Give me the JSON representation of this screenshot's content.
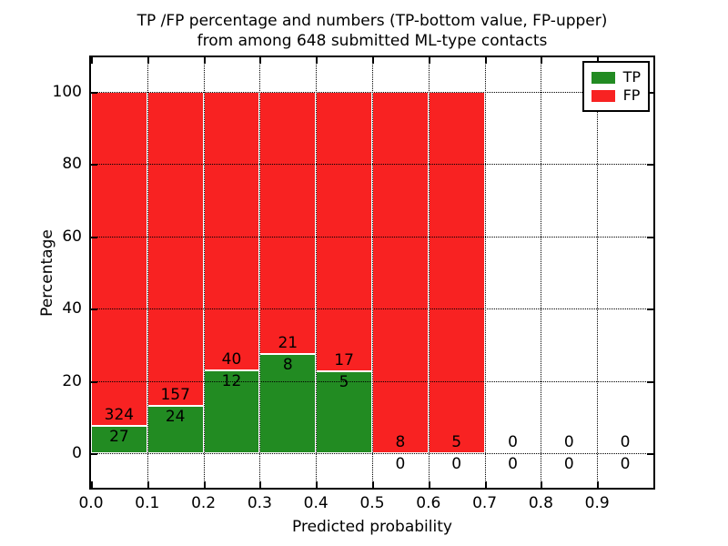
{
  "title": {
    "line1": "TP /FP percentage and numbers (TP-bottom value, FP-upper)",
    "line2": "from among 648 submitted ML-type contacts"
  },
  "axes": {
    "xlabel": "Predicted probability",
    "ylabel": "Percentage",
    "x_tick_labels": [
      "0.0",
      "0.1",
      "0.2",
      "0.3",
      "0.4",
      "0.5",
      "0.6",
      "0.7",
      "0.8",
      "0.9"
    ],
    "y_tick_labels": [
      "0",
      "20",
      "40",
      "60",
      "80",
      "100"
    ]
  },
  "legend": {
    "position": "upper right",
    "items": [
      {
        "label": "TP",
        "color": "#228b22"
      },
      {
        "label": "FP",
        "color": "#f82222"
      }
    ]
  },
  "chart_data": {
    "type": "bar",
    "stacked": true,
    "normalized": "each non-empty bin scaled to 100%",
    "title": "TP /FP percentage and numbers (TP-bottom value, FP-upper) from among 648 submitted ML-type contacts",
    "xlabel": "Predicted probability",
    "ylabel": "Percentage",
    "total_contacts": 648,
    "bin_width": 0.1,
    "bin_starts": [
      0.0,
      0.1,
      0.2,
      0.3,
      0.4,
      0.5,
      0.6,
      0.7,
      0.8,
      0.9
    ],
    "series": [
      {
        "name": "TP",
        "color": "#228b22",
        "counts": [
          27,
          24,
          12,
          8,
          5,
          0,
          0,
          0,
          0,
          0
        ]
      },
      {
        "name": "FP",
        "color": "#f82222",
        "counts": [
          324,
          157,
          40,
          21,
          17,
          8,
          5,
          0,
          0,
          0
        ]
      }
    ],
    "tp_percent_of_bin": [
      7.69,
      13.26,
      23.08,
      27.59,
      22.73,
      0,
      0,
      0,
      0,
      0
    ],
    "x_ticks": [
      0.0,
      0.1,
      0.2,
      0.3,
      0.4,
      0.5,
      0.6,
      0.7,
      0.8,
      0.9
    ],
    "y_ticks": [
      0,
      20,
      40,
      60,
      80,
      100
    ],
    "xlim": [
      0.0,
      1.0
    ],
    "ylim": [
      -9.5,
      109.5
    ],
    "grid": "dotted",
    "legend_position": "upper right"
  }
}
